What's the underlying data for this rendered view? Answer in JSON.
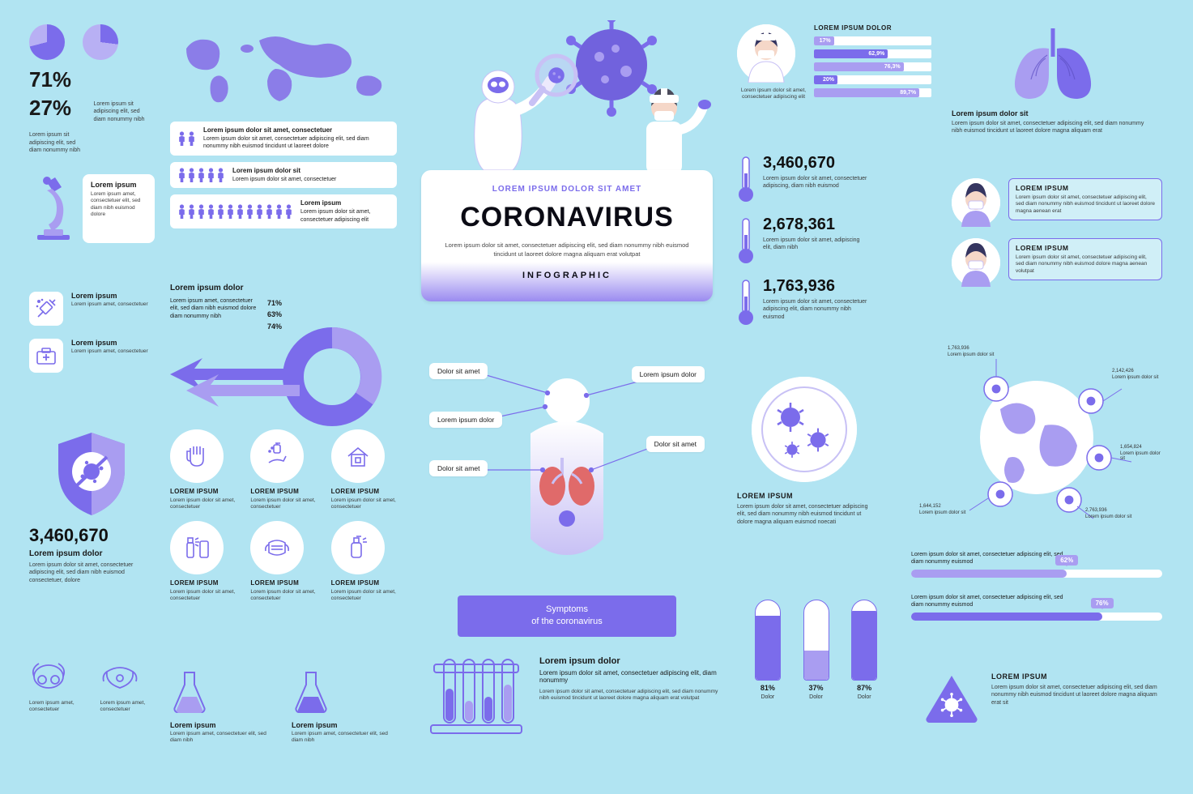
{
  "colors": {
    "bg": "#b1e4f2",
    "accent": "#7b6ceb",
    "accent_light": "#a99df1",
    "accent_pale": "#c8c1f5",
    "dark": "#1a1a1a",
    "white": "#ffffff"
  },
  "lorem": {
    "short": "Lorem ipsum sit adipiscing elit, sed diam nonummy nibh",
    "med": "Lorem ipsum amet, consectetuer elit, sed diam nibh euismod dolore",
    "long": "Lorem ipsum dolor sit amet, consectetuer adipiscing elit, sed diam nonummy nibh euismod tincidunt ut laoreet dolore magna aliquam erat volutpat"
  },
  "pies": [
    {
      "value": 71,
      "label": "71%"
    },
    {
      "value": 27,
      "label": "27%"
    }
  ],
  "people_rows": [
    {
      "count": 2,
      "title": "Lorem ipsum dolor sit amet, consectetuer",
      "desc": "Lorem ipsum dolor sit amet, consectetuer adipiscing elit, sed diam nonummy nibh euismod tincidunt ut laoreet dolore"
    },
    {
      "count": 5,
      "title": "Lorem ipsum dolor sit",
      "desc": "Lorem ipsum dolor sit amet, consectetuer"
    },
    {
      "count": 12,
      "title": "Lorem ipsum",
      "desc": "Lorem ipsum dolor sit amet, consectetuer adipiscing elit"
    }
  ],
  "microscope": {
    "title": "Lorem ipsum",
    "desc": "Lorem ipsum amet, consectetuer elit, sed diam nibh euismod dolore"
  },
  "mini_list": [
    {
      "icon": "syringe",
      "title": "Lorem ipsum",
      "desc": "Lorem ipsum amet, consectetuer"
    },
    {
      "icon": "medkit",
      "title": "Lorem ipsum",
      "desc": "Lorem ipsum amet, consectetuer"
    }
  ],
  "donut": {
    "title": "Lorem ipsum dolor",
    "desc": "Lorem ipsum amet, consectetuer elit, sed diam nibh euismod dolore diam nonummy nibh",
    "values": [
      "71%",
      "63%",
      "74%"
    ]
  },
  "shield": {
    "number": "3,460,670",
    "title": "Lorem ipsum dolor",
    "desc": "Lorem ipsum dolor sit amet, consectetuer adipiscing elit, sed diam nibh euismod consectetuer, dolore"
  },
  "masks_bottom": [
    {
      "icon": "respirator",
      "desc": "Lorem ipsum amet, consectetuer"
    },
    {
      "icon": "n95",
      "desc": "Lorem ipsum amet, consectetuer"
    }
  ],
  "prevent": [
    {
      "icon": "gloves",
      "title": "LOREM IPSUM",
      "desc": "Lorem ipsum dolor sit amet, consectetuer"
    },
    {
      "icon": "wash",
      "title": "LOREM IPSUM",
      "desc": "Lorem ipsum dolor sit amet, consectetuer"
    },
    {
      "icon": "home",
      "title": "LOREM IPSUM",
      "desc": "Lorem ipsum dolor sit amet, consectetuer"
    },
    {
      "icon": "spray",
      "title": "LOREM IPSUM",
      "desc": "Lorem ipsum dolor sit amet, consectetuer"
    },
    {
      "icon": "facemask",
      "title": "LOREM IPSUM",
      "desc": "Lorem ipsum dolor sit amet, consectetuer"
    },
    {
      "icon": "sanitizer",
      "title": "LOREM IPSUM",
      "desc": "Lorem ipsum dolor sit amet, consectetuer"
    }
  ],
  "flasks": [
    {
      "title": "Lorem ipsum",
      "desc": "Lorem ipsum amet, consectetuer elit, sed diam nibh"
    },
    {
      "title": "Lorem ipsum",
      "desc": "Lorem ipsum amet, consectetuer elit, sed diam nibh"
    }
  ],
  "title_card": {
    "pre": "LOREM IPSUM DOLOR SIT AMET",
    "main": "CORONAVIRUS",
    "desc": "Lorem ipsum dolor sit amet, consectetuer adipiscing elit, sed diam nonummy nibh euismod tincidunt ut laoreet dolore magna aliquam erat volutpat",
    "footer": "INFOGRAPHIC"
  },
  "symptoms": {
    "labels_left": [
      "Dolor  sit amet",
      "Lorem ipsum dolor",
      "Dolor  sit amet"
    ],
    "labels_right": [
      "Lorem ipsum dolor",
      "Dolor  sit amet"
    ],
    "footer_l1": "Symptoms",
    "footer_l2": "of the coronavirus"
  },
  "tubes_paragraph": {
    "title": "Lorem ipsum dolor",
    "desc1": "Lorem ipsum dolor sit amet, consectetuer adipiscing elit, diam nonummy",
    "desc2": "Lorem ipsum dolor sit amet, consectetuer adipiscing elit, sed diam nonummy nibh euismod tincidunt ut laoreet dolore magna aliquam erat volutpat"
  },
  "nurse": {
    "caption": "Lorem ipsum dolor sit amet, consectetuer adipiscing elit"
  },
  "bars": {
    "title": "LOREM IPSUM DOLOR",
    "rows": [
      {
        "pct": 17,
        "label": "17%",
        "color": "#a99df1"
      },
      {
        "pct": 62.9,
        "label": "62,9%",
        "color": "#7b6ceb"
      },
      {
        "pct": 76.3,
        "label": "76,3%",
        "color": "#a99df1"
      },
      {
        "pct": 20,
        "label": "20%",
        "color": "#7b6ceb"
      },
      {
        "pct": 89.7,
        "label": "89,7%",
        "color": "#a99df1"
      }
    ]
  },
  "lungs": {
    "title": "Lorem ipsum dolor sit",
    "desc": "Lorem ipsum dolor sit amet, consectetuer adipiscing elit, sed diam nonummy nibh euismod tincidunt ut laoreet dolore magna aliquam erat"
  },
  "thermo": [
    {
      "num": "3,460,670",
      "desc": "Lorem ipsum dolor sit amet, consectetuer adipiscing, diam nibh euismod"
    },
    {
      "num": "2,678,361",
      "desc": "Lorem ipsum dolor sit amet, adipiscing elit, diam nibh"
    },
    {
      "num": "1,763,936",
      "desc": "Lorem ipsum dolor sit amet, consectetuer adipiscing elit, diam nonummy nibh euismod"
    }
  ],
  "mask_people": [
    {
      "title": "LOREM IPSUM",
      "desc": "Lorem ipsum dolor sit amet, consectetuer adipiscing elit, sed diam nonummy nibh euismod tincidunt ut laoreet dolore magna aenean erat"
    },
    {
      "title": "LOREM IPSUM",
      "desc": "Lorem ipsum dolor sit amet, consectetuer adipiscing elit, sed diam nonummy nibh euismod dolore magna aenean volutpat"
    }
  ],
  "petri": {
    "title": "LOREM IPSUM",
    "desc": "Lorem ipsum dolor sit amet, consectetuer adipiscing elit, sed diam nonummy nibh euismod tincidunt ut dolore magna aliquam euismod noecati"
  },
  "globe_stats": [
    {
      "num": "1,763,936",
      "desc": "Lorem ipsum dolor sit"
    },
    {
      "num": "2,142,426",
      "desc": "Lorem ipsum dolor sit"
    },
    {
      "num": "1,654,824",
      "desc": "Lorem ipsum dolor sit"
    },
    {
      "num": "1,644,152",
      "desc": "Lorem ipsum dolor sit"
    },
    {
      "num": "2,763,936",
      "desc": "Lorem ipsum dolor sit"
    }
  ],
  "progress": [
    {
      "pct": 62,
      "label": "62%",
      "desc": "Lorem ipsum dolor sit amet, consectetuer adipiscing elit, sed diam nonummy euismod",
      "color": "#a99df1"
    },
    {
      "pct": 76,
      "label": "76%",
      "desc": "Lorem ipsum dolor sit amet, consectetuer adipiscing elit, sed diam nonummy euismod",
      "color": "#7b6ceb"
    }
  ],
  "vert_bars": [
    {
      "pct": 81,
      "label": "81%",
      "sub": "Dolor",
      "color": "#7b6ceb"
    },
    {
      "pct": 37,
      "label": "37%",
      "sub": "Dolor",
      "color": "#a99df1"
    },
    {
      "pct": 87,
      "label": "87%",
      "sub": "Dolor",
      "color": "#7b6ceb"
    }
  ],
  "warn": {
    "title": "LOREM IPSUM",
    "desc": "Lorem ipsum dolor sit amet, consectetuer adipiscing elit, sed diam nonummy nibh euismod tincidunt ut laoreet dolore magna aliquam erat sit"
  }
}
